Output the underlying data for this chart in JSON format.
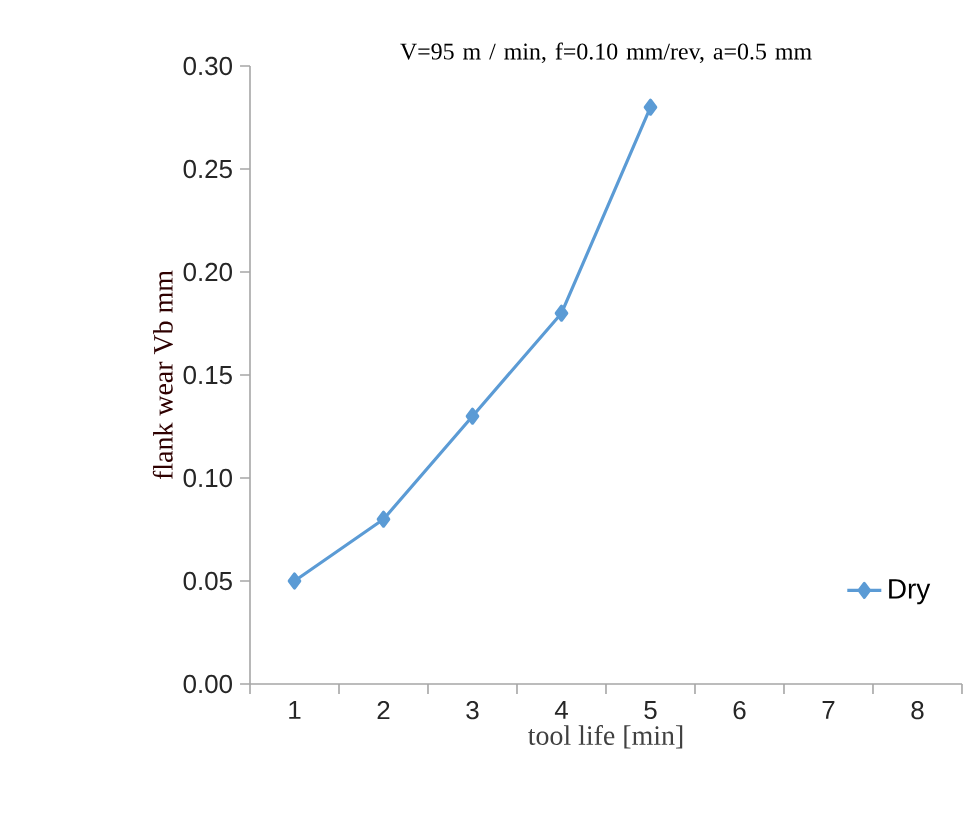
{
  "chart_data": {
    "type": "line",
    "title": "V=95 m / min, f=0.10 mm/rev, a=0.5 mm",
    "xlabel": "tool life [min]",
    "ylabel": "flank wear Vb mm",
    "categories": [
      "1",
      "2",
      "3",
      "4",
      "5",
      "6",
      "7",
      "8"
    ],
    "series": [
      {
        "name": "Dry",
        "color": "#5b9bd5",
        "values": [
          0.05,
          0.08,
          0.13,
          0.18,
          0.28,
          null,
          null,
          null
        ]
      }
    ],
    "ylim": [
      0,
      0.3
    ],
    "yticks": [
      {
        "value": 0,
        "label": "0.00"
      },
      {
        "value": 0.05,
        "label": "0.05"
      },
      {
        "value": 0.1,
        "label": "0.10"
      },
      {
        "value": 0.15,
        "label": "0.15"
      },
      {
        "value": 0.2,
        "label": "0.20"
      },
      {
        "value": 0.25,
        "label": "0.25"
      },
      {
        "value": 0.3,
        "label": "0.30"
      }
    ],
    "marker": "diamond",
    "line_style": "solid",
    "legend": "bottom right",
    "grid": false
  }
}
